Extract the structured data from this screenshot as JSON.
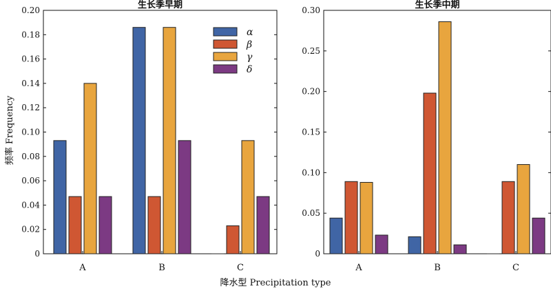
{
  "colors": {
    "alpha": "#4065a5",
    "beta": "#cf5733",
    "gamma": "#e8a53e",
    "delta": "#7c3a83"
  },
  "shared": {
    "ylabel": "频率 Frequency",
    "xlabel": "降水型 Precipitation type"
  },
  "chart_data": [
    {
      "type": "bar",
      "title": "生长季早期",
      "categories": [
        "A",
        "B",
        "C"
      ],
      "ylim": [
        0,
        0.2
      ],
      "yticks": [
        "0",
        "0.02",
        "0.04",
        "0.06",
        "0.08",
        "0.10",
        "0.12",
        "0.14",
        "0.16",
        "0.18",
        "0.20"
      ],
      "legend": "top-right",
      "series": [
        {
          "name": "α",
          "values": [
            0.093,
            0.186,
            0.0
          ]
        },
        {
          "name": "β",
          "values": [
            0.047,
            0.047,
            0.023
          ]
        },
        {
          "name": "γ",
          "values": [
            0.14,
            0.186,
            0.093
          ]
        },
        {
          "name": "δ",
          "values": [
            0.047,
            0.093,
            0.047
          ]
        }
      ]
    },
    {
      "type": "bar",
      "title": "生长季中期",
      "categories": [
        "A",
        "B",
        "C"
      ],
      "ylim": [
        0,
        0.3
      ],
      "yticks": [
        "0",
        "0.05",
        "0.10",
        "0.15",
        "0.20",
        "0.25",
        "0.30"
      ],
      "series": [
        {
          "name": "α",
          "values": [
            0.044,
            0.021,
            0.0
          ]
        },
        {
          "name": "β",
          "values": [
            0.089,
            0.198,
            0.089
          ]
        },
        {
          "name": "γ",
          "values": [
            0.088,
            0.286,
            0.11
          ]
        },
        {
          "name": "δ",
          "values": [
            0.023,
            0.011,
            0.044
          ]
        }
      ]
    }
  ]
}
